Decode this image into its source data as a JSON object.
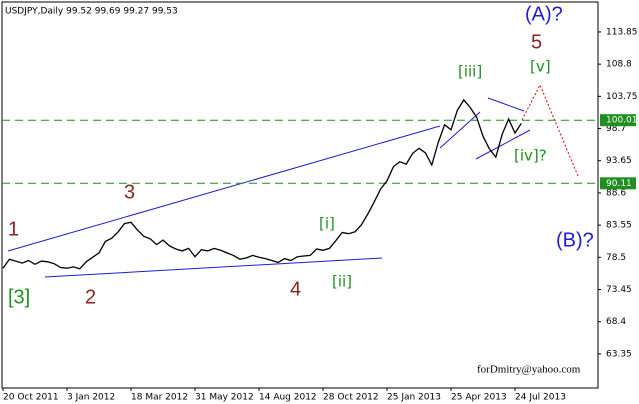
{
  "chart_data": {
    "type": "line",
    "title": "USDJPY,Daily  99.52 99.69 99.27 99.53",
    "categories": [
      "20 Oct 2011",
      null,
      null,
      null,
      null,
      null,
      null,
      null,
      null,
      null,
      "3 Jan 2012",
      null,
      null,
      null,
      null,
      null,
      null,
      null,
      null,
      null,
      "18 Mar 2012",
      null,
      null,
      null,
      null,
      null,
      null,
      null,
      null,
      null,
      "31 May 2012",
      null,
      null,
      null,
      null,
      null,
      null,
      null,
      null,
      null,
      "14 Aug 2012",
      null,
      null,
      null,
      null,
      null,
      null,
      null,
      null,
      null,
      "28 Oct 2012",
      null,
      null,
      null,
      null,
      null,
      null,
      null,
      null,
      null,
      "25 Jan 2013",
      null,
      null,
      null,
      null,
      null,
      null,
      null,
      null,
      null,
      "25 Apr 2013",
      null,
      null,
      null,
      null,
      null,
      null,
      null,
      null,
      null,
      "24 Jul 2013",
      null
    ],
    "series": [
      {
        "name": "USDJPY",
        "color": "#000000",
        "values": [
          76.8,
          78.2,
          77.9,
          77.6,
          78.0,
          77.4,
          77.9,
          77.8,
          77.5,
          76.9,
          76.8,
          77.0,
          76.7,
          77.8,
          78.5,
          79.2,
          81.0,
          81.5,
          82.5,
          83.8,
          84.0,
          82.8,
          81.8,
          81.4,
          80.5,
          81.2,
          80.3,
          79.8,
          79.5,
          79.9,
          78.6,
          79.7,
          79.5,
          79.9,
          79.6,
          79.2,
          78.8,
          78.2,
          78.4,
          78.8,
          78.5,
          78.3,
          78.0,
          77.7,
          78.3,
          78.0,
          78.6,
          78.7,
          78.8,
          79.8,
          79.6,
          79.9,
          81.1,
          82.4,
          82.2,
          82.5,
          83.6,
          85.3,
          87.2,
          89.2,
          90.5,
          92.7,
          93.5,
          93.1,
          94.8,
          95.6,
          94.9,
          93.0,
          96.5,
          99.3,
          98.5,
          101.6,
          103.2,
          102.0,
          100.5,
          97.5,
          95.5,
          94.2,
          97.8,
          100.2,
          98.0,
          99.53
        ]
      }
    ],
    "ylim": [
      58.0,
      118.55
    ],
    "yticks": [
      63.35,
      68.4,
      73.45,
      78.5,
      83.55,
      88.6,
      93.65,
      98.7,
      103.75,
      108.8,
      113.85
    ],
    "levels": [
      100.01,
      90.11
    ],
    "level_color": "#1f8f1f",
    "annotations": [
      "1",
      "[3]",
      "2",
      "3",
      "4",
      "[i]",
      "[ii]",
      "[iii]",
      "[iv]?",
      "[v]",
      "5",
      "(A)?",
      "(B)?",
      "forDmitry@yahoo.com"
    ]
  }
}
